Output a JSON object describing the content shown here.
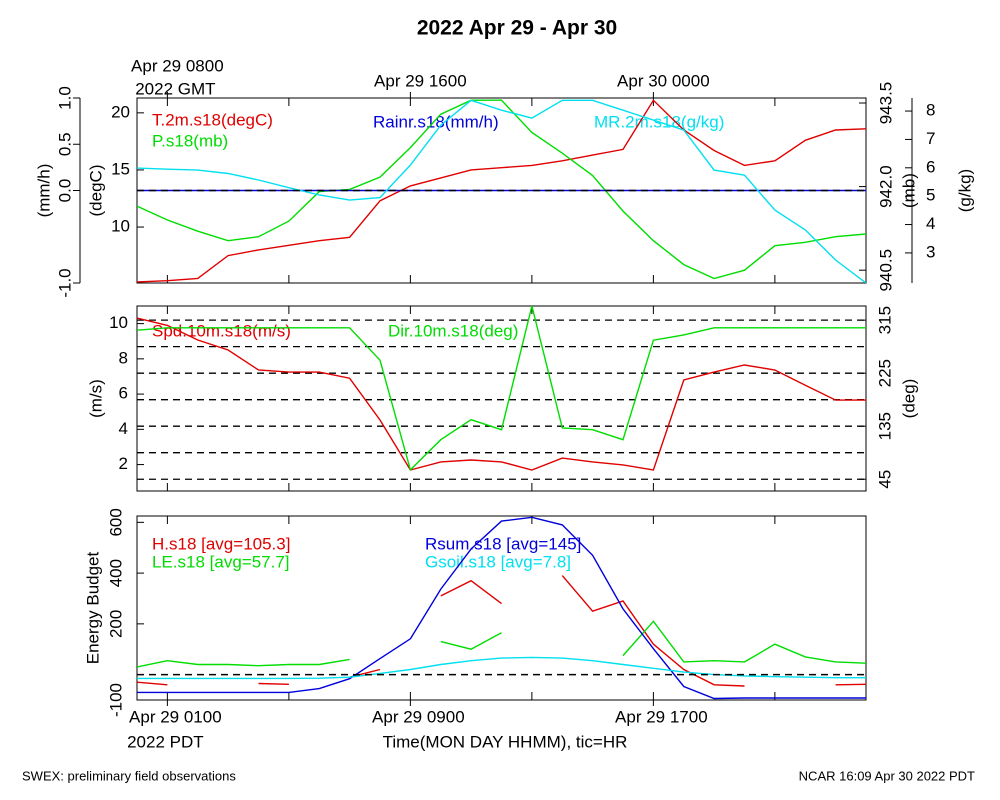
{
  "title": "2022 Apr 29 - Apr 30",
  "footer_left": "SWEX: preliminary field observations",
  "footer_right": "NCAR 16:09 Apr 30 2022 PDT",
  "chart_data": [
    {
      "type": "line",
      "x": [
        0,
        1,
        2,
        3,
        4,
        5,
        6,
        7,
        8,
        9,
        10,
        11,
        12,
        13,
        14,
        15,
        16,
        17,
        18,
        19,
        20,
        21,
        22,
        23,
        24
      ],
      "xlim": [
        0,
        24
      ],
      "x_tick_marks": [
        1,
        5,
        9,
        13,
        17,
        21
      ],
      "top_xticks": [
        {
          "value": 1,
          "label": "Apr 29 0800"
        },
        {
          "value": 9,
          "label": "Apr 29 1600"
        },
        {
          "value": 17,
          "label": "Apr 30 0000"
        }
      ],
      "top_x_note": "2022 GMT",
      "ylabel": "(mm/h)",
      "ylim": [
        -1,
        1
      ],
      "yticks": [
        {
          "value": -1,
          "label": "-1.0"
        },
        {
          "value": 0,
          "label": "0.0"
        },
        {
          "value": 0.5,
          "label": "0.5"
        },
        {
          "value": 1,
          "label": "1.0"
        }
      ],
      "y2label": "(degC)",
      "y2lim": [
        5.1,
        21.3
      ],
      "y2ticks": [
        10,
        15,
        20
      ],
      "y3label": "(mb)",
      "y3lim": [
        940.27,
        943.59
      ],
      "y3ticks": [
        940.5,
        {
          "value": 942,
          "label": "942.0"
        },
        943.5
      ],
      "y4label": "(g/kg)",
      "y4lim": [
        1.94,
        8.46
      ],
      "y4ticks": [
        3,
        4,
        5,
        6,
        7,
        8
      ],
      "hline": {
        "axis": "y",
        "value": 0
      },
      "series": [
        {
          "name": "T.2m.s18(degC)",
          "color": "#e00000",
          "axis": "y2",
          "values": [
            5.2,
            5.3,
            5.5,
            7.5,
            8.0,
            8.4,
            8.8,
            9.1,
            12.3,
            13.6,
            14.3,
            15.0,
            15.2,
            15.4,
            15.8,
            16.3,
            16.8,
            21.1,
            18.5,
            16.7,
            15.4,
            15.8,
            17.6,
            18.5,
            18.6
          ]
        },
        {
          "name": "P.s18(mb)",
          "color": "#00dd00",
          "axis": "y3",
          "values": [
            941.65,
            941.4,
            941.2,
            941.03,
            941.1,
            941.38,
            941.91,
            941.95,
            942.17,
            942.7,
            943.3,
            943.55,
            943.55,
            942.97,
            942.6,
            942.2,
            941.56,
            941.03,
            940.6,
            940.35,
            940.5,
            940.94,
            941.0,
            941.1,
            941.15
          ]
        },
        {
          "name": "Rainr.s18(mm/h)",
          "color": "#0000dd",
          "axis": "y",
          "values": [
            0,
            0,
            0,
            0,
            0,
            0,
            0,
            0,
            0,
            0,
            0,
            0,
            0,
            0,
            0,
            0,
            0,
            0,
            0,
            0,
            0,
            0,
            0,
            0,
            0
          ]
        },
        {
          "name": "MR.2m.s18(g/kg)",
          "color": "#00e0f0",
          "axis": "y4",
          "values": [
            5.99,
            5.95,
            5.92,
            5.8,
            5.57,
            5.3,
            5.04,
            4.86,
            4.95,
            6.1,
            7.5,
            8.38,
            8.03,
            7.75,
            8.38,
            8.38,
            8.03,
            7.68,
            7.33,
            5.92,
            5.74,
            4.51,
            3.81,
            2.75,
            1.94
          ]
        }
      ]
    },
    {
      "type": "line",
      "x": [
        0,
        1,
        2,
        3,
        4,
        5,
        6,
        7,
        8,
        9,
        10,
        11,
        12,
        13,
        14,
        15,
        16,
        17,
        18,
        19,
        20,
        21,
        22,
        23,
        24
      ],
      "xlim": [
        0,
        24
      ],
      "x_tick_marks": [
        1,
        5,
        9,
        13,
        17,
        21
      ],
      "ylabel": "(m/s)",
      "ylim": [
        0.5,
        11
      ],
      "yticks": [
        2,
        4,
        6,
        8,
        10
      ],
      "y2label": "(deg)",
      "y2lim": [
        25,
        339
      ],
      "y2ticks": [
        45,
        135,
        225,
        315
      ],
      "y2_grid": [
        45,
        90,
        135,
        180,
        225,
        270,
        315
      ],
      "series": [
        {
          "name": "Spd.10m.s18(m/s)",
          "color": "#e00000",
          "axis": "y",
          "values": [
            10.32,
            9.9,
            9.07,
            8.5,
            7.37,
            7.25,
            7.25,
            6.9,
            4.53,
            1.69,
            2.15,
            2.26,
            2.15,
            1.69,
            2.37,
            2.15,
            1.98,
            1.69,
            6.8,
            7.25,
            7.65,
            7.37,
            6.5,
            5.66,
            5.66
          ]
        },
        {
          "name": "Dir.10m.s18(deg)",
          "color": "#00dd00",
          "axis": "y2",
          "values": [
            298,
            302,
            302,
            302,
            302,
            302,
            302,
            302,
            247,
            61,
            112,
            146,
            129,
            339,
            132,
            129,
            112,
            281,
            290,
            302,
            302,
            302,
            302,
            302,
            302
          ]
        }
      ]
    },
    {
      "type": "line",
      "x": [
        0,
        1,
        2,
        3,
        4,
        5,
        6,
        7,
        8,
        9,
        10,
        11,
        12,
        13,
        14,
        15,
        16,
        17,
        18,
        19,
        20,
        21,
        22,
        23,
        24
      ],
      "xlim": [
        0,
        24
      ],
      "x_tick_marks": [
        1,
        5,
        9,
        13,
        17,
        21
      ],
      "xticks": [
        {
          "value": 1,
          "label": "Apr 29 0100"
        },
        {
          "value": 9,
          "label": "Apr 29 0900"
        },
        {
          "value": 17,
          "label": "Apr 29 1700"
        }
      ],
      "x_note": "2022 PDT",
      "xlabel": "Time(MON DAY HHMM), tic=HR",
      "ylabel": "Energy Budget",
      "ylim": [
        -100,
        625
      ],
      "yticks": [
        -100,
        200,
        400,
        600
      ],
      "hline": {
        "axis": "y",
        "value": 0
      },
      "series": [
        {
          "name": "H.s18 [avg=105.3]",
          "color": "#e00000",
          "axis": "y",
          "values": [
            -30,
            -40,
            null,
            null,
            -35,
            -38,
            null,
            -10,
            20,
            null,
            310,
            370,
            280,
            null,
            390,
            250,
            290,
            120,
            20,
            -40,
            -45,
            null,
            null,
            -40,
            -38
          ]
        },
        {
          "name": "LE.s18 [avg=57.7]",
          "color": "#00dd00",
          "axis": "y",
          "values": [
            30,
            55,
            40,
            40,
            35,
            40,
            40,
            60,
            null,
            null,
            130,
            100,
            165,
            null,
            null,
            null,
            75,
            210,
            50,
            55,
            50,
            120,
            70,
            50,
            45
          ]
        },
        {
          "name": "Rsum.s18 [avg=145]",
          "color": "#0000dd",
          "axis": "y",
          "values": [
            -70,
            -70,
            -70,
            -70,
            -70,
            -70,
            -55,
            -16,
            63,
            141,
            337,
            495,
            605,
            620,
            590,
            470,
            259,
            102,
            -47,
            -94,
            -92,
            -92,
            -92,
            -92,
            -92
          ]
        },
        {
          "name": "Gsoil.s18 [avg=7.8]",
          "color": "#00e0f0",
          "axis": "y",
          "values": [
            -15,
            -15,
            -15,
            -15,
            -15,
            -15,
            -14,
            -10,
            5,
            20,
            40,
            55,
            65,
            68,
            65,
            55,
            40,
            25,
            10,
            0,
            -5,
            -8,
            -10,
            -12,
            -12
          ]
        }
      ]
    }
  ]
}
